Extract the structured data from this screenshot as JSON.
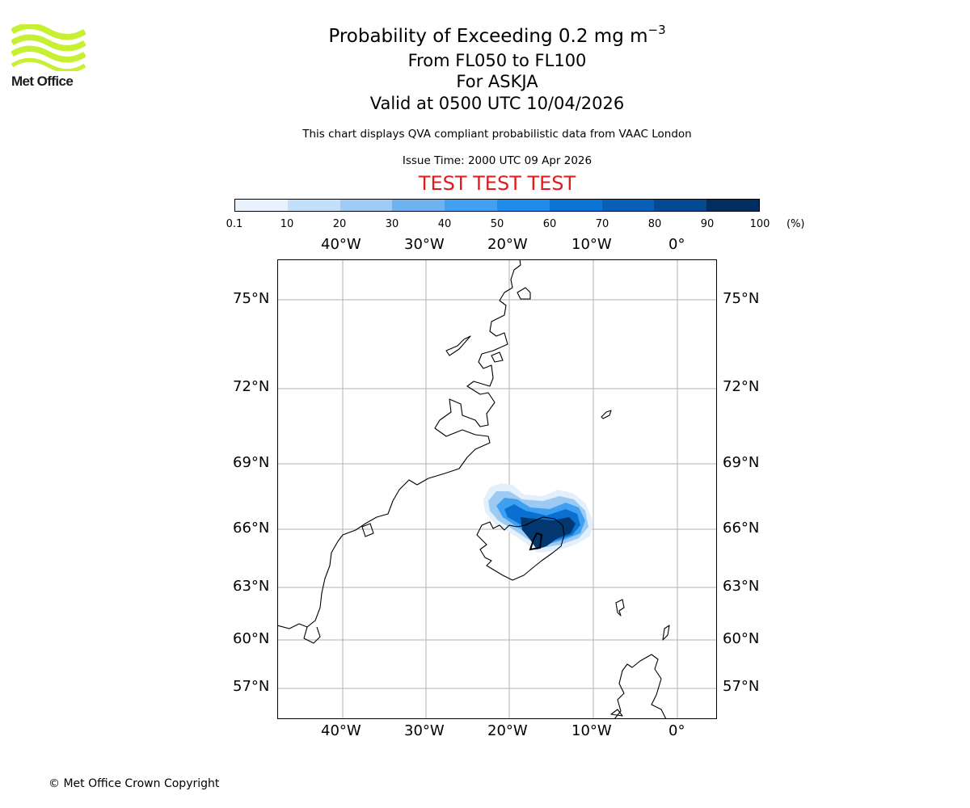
{
  "header": {
    "logo_text": "Met Office",
    "title_prefix": "Probability of Exceeding 0.2 mg m",
    "title_exponent": "−3",
    "levels": "From FL050 to FL100",
    "location": "For ASKJA",
    "valid_time": "Valid at 0500 UTC 10/04/2026",
    "description": "This chart displays QVA compliant probabilistic data from VAAC London",
    "issue_time": "Issue Time: 2000 UTC 09 Apr 2026",
    "test_banner": "TEST TEST TEST"
  },
  "colorbar": {
    "ticks": [
      "0.1",
      "10",
      "20",
      "30",
      "40",
      "50",
      "60",
      "70",
      "80",
      "90",
      "100"
    ],
    "unit": "(%)",
    "colors": [
      "#e8f2fd",
      "#c3dff9",
      "#9fcbf5",
      "#6fb2f1",
      "#42a0f0",
      "#1f8bea",
      "#0b74d6",
      "#075fb8",
      "#034a93",
      "#022d60"
    ]
  },
  "map": {
    "lon_labels": [
      "40°W",
      "30°W",
      "20°W",
      "10°W",
      "0°"
    ],
    "lat_labels": [
      "75°N",
      "72°N",
      "69°N",
      "66°N",
      "63°N",
      "60°N",
      "57°N"
    ],
    "volcano": "ASKJA"
  },
  "footer": {
    "copyright": "© Met Office Crown Copyright"
  }
}
